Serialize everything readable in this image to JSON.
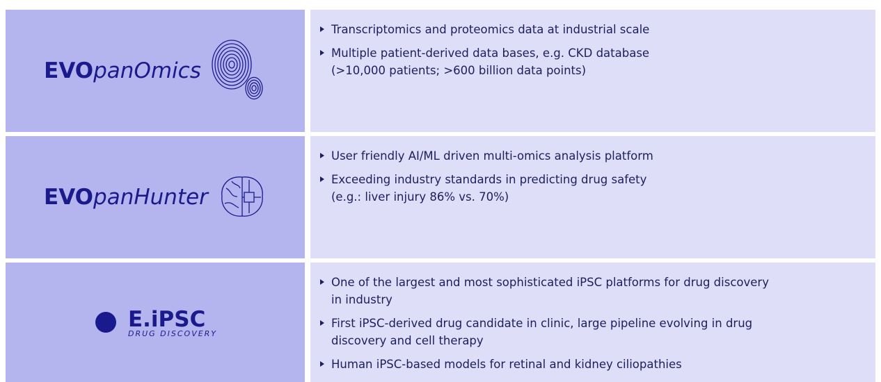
{
  "rows": [
    {
      "logo": {
        "bold": "EVO",
        "italic": "panOmics"
      },
      "bullets": [
        [
          "Transcriptomics and proteomics data at industrial scale"
        ],
        [
          "Multiple patient-derived data bases, e.g. CKD database",
          "(>10,000 patients; >600 billion data points)"
        ]
      ]
    },
    {
      "logo": {
        "bold": "EVO",
        "italic": "panHunter"
      },
      "bullets": [
        [
          "User friendly AI/ML driven multi-omics analysis platform"
        ],
        [
          "Exceeding industry standards in predicting drug safety",
          "(e.g.: liver injury 86% vs. 70%)"
        ]
      ]
    },
    {
      "logo": {
        "bold": "E.iPSC",
        "tagline": "DRUG DISCOVERY"
      },
      "bullets": [
        [
          "One of the largest and most sophisticated iPSC platforms for drug discovery",
          "in industry"
        ],
        [
          "First iPSC-derived drug candidate in clinic, large pipeline evolving in drug",
          "discovery and cell therapy"
        ],
        [
          "Human iPSC-based models for retinal and kidney ciliopathies"
        ]
      ]
    }
  ]
}
